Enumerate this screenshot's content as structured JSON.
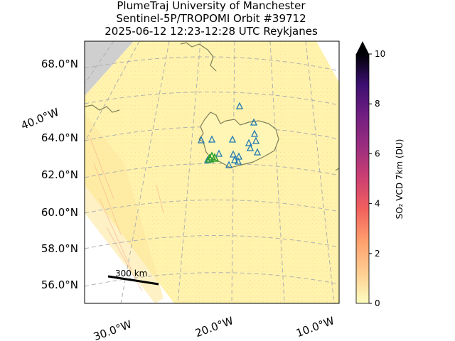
{
  "title": {
    "line1": "PlumeTraj    University of Manchester",
    "line2": "Sentinel-5P/TROPOMI Orbit #39712",
    "line3": "2025-06-12   12:23-12:28 UTC   Reykjanes"
  },
  "map": {
    "lat_labels": [
      "68.0°N",
      "64.0°N",
      "62.0°N",
      "60.0°N",
      "58.0°N",
      "56.0°N"
    ],
    "lon_labels_bottom": [
      "30.0°W",
      "20.0°W",
      "10.0°W"
    ],
    "lon_label_left": "40.0°W",
    "scale_bar_label": "300 km",
    "colors": {
      "swath_fill": "#fff6b5",
      "no_data": "#cfcfcf",
      "coastline": "#7f7f5a",
      "gridline": "#b0b0b0",
      "volcano_marker": "#1f77b4",
      "active_volcano_marker": "#2ca02c"
    }
  },
  "colorbar": {
    "label": "SO₂ VCD 7km (DU)",
    "ticks": [
      "0",
      "2",
      "4",
      "6",
      "8",
      "10"
    ],
    "min": 0,
    "max": 10,
    "extend": "max",
    "colormap": "magma_r"
  }
}
